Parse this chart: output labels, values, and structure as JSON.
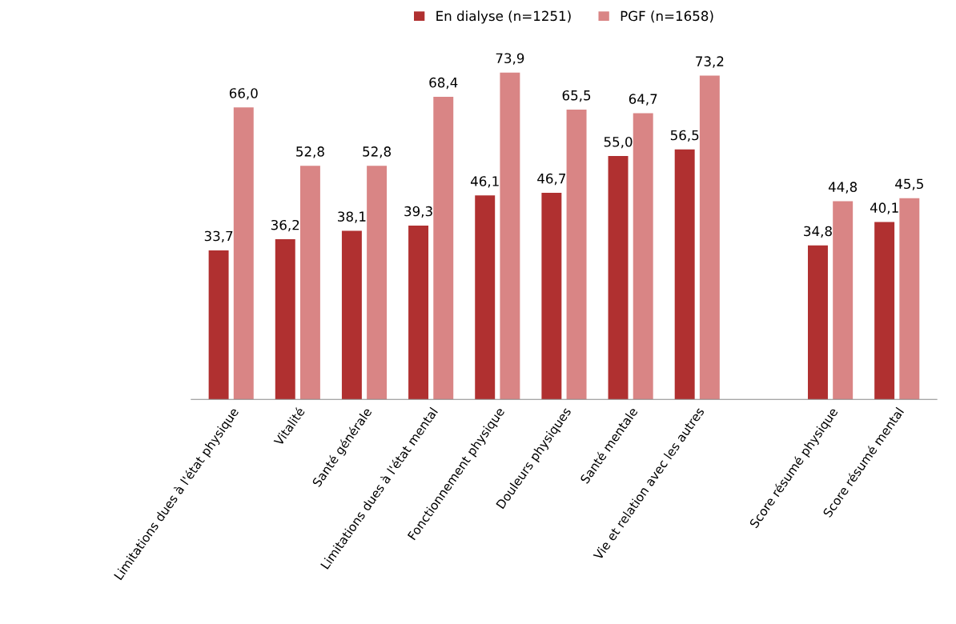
{
  "chart_data": {
    "type": "bar",
    "categories": [
      "Limitations dues à l'état physique",
      "Vitalité",
      "Santé générale",
      "Limitations dues à l'état mental",
      "Fonctionnement physique",
      "Douleurs physiques",
      "Santé mentale",
      "Vie et relation avec les autres",
      null,
      "Score résumé physique",
      "Score résumé mental"
    ],
    "series": [
      {
        "name": "En dialyse (n=1251)",
        "color": "#b03030",
        "values": [
          33.7,
          36.2,
          38.1,
          39.3,
          46.1,
          46.7,
          55.0,
          56.5,
          null,
          34.8,
          40.1
        ],
        "value_labels": [
          "33,7",
          "36,2",
          "38,1",
          "39,3",
          "46,1",
          "46,7",
          "55,0",
          "56,5",
          null,
          "34,8",
          "40,1"
        ]
      },
      {
        "name": "PGF (n=1658)",
        "color": "#d98585",
        "values": [
          66.0,
          52.8,
          52.8,
          68.4,
          73.9,
          65.5,
          64.7,
          73.2,
          null,
          44.8,
          45.5
        ],
        "value_labels": [
          "66,0",
          "52,8",
          "52,8",
          "68,4",
          "73,9",
          "65,5",
          "64,7",
          "73,2",
          null,
          "44,8",
          "45,5"
        ]
      }
    ],
    "legend": "top",
    "grid": false
  }
}
